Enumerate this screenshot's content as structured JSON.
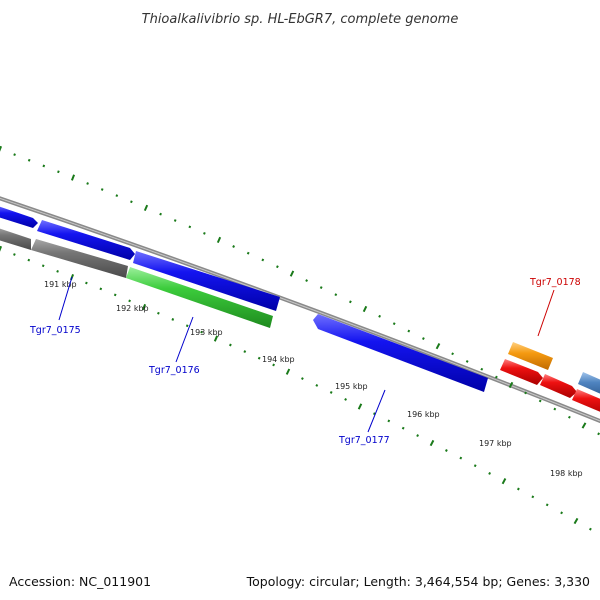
{
  "title": "Thioalkalivibrio sp. HL-EbGR7, complete genome",
  "accession": "Accession: NC_011901",
  "topology": "Topology: circular; Length: 3,464,554 bp; Genes: 3,330",
  "colors": {
    "plus_strand_gene": "#1010e8",
    "cds_green": "#33cc33",
    "gray_feature": "#707070",
    "trna_orange": "#f59a10",
    "red_feature": "#ee1111",
    "steel_blue": "#4f84c0",
    "tick_green": "#1a7a1a",
    "backbone": "#8a8a8a"
  },
  "tick_labels": [
    "191 kbp",
    "192 kbp",
    "193 kbp",
    "194 kbp",
    "195 kbp",
    "196 kbp",
    "197 kbp",
    "198 kbp"
  ],
  "genes": [
    {
      "label": "Tgr7_0175",
      "color": "#0000cc"
    },
    {
      "label": "Tgr7_0176",
      "color": "#0000cc"
    },
    {
      "label": "Tgr7_0177",
      "color": "#0000cc"
    },
    {
      "label": "Tgr7_0178",
      "color": "#cc0000"
    }
  ]
}
